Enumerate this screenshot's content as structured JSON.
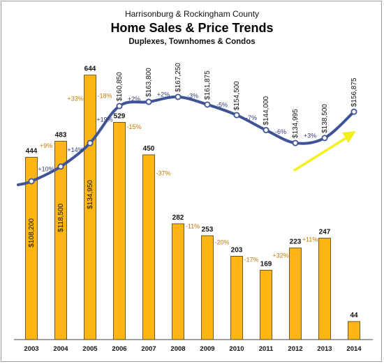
{
  "chart_data": {
    "type": "bar",
    "title": "Home Sales & Price Trends",
    "supertitle": "Harrisonburg & Rockingham County",
    "subtitle": "Duplexes, Townhomes & Condos",
    "categories": [
      "2003",
      "2004",
      "2005",
      "2006",
      "2007",
      "2008",
      "2009",
      "2010",
      "2011",
      "2012",
      "2013",
      "2014"
    ],
    "series": [
      {
        "type": "bar",
        "values": [
          444,
          483,
          644,
          529,
          450,
          282,
          253,
          203,
          169,
          223,
          247,
          44
        ],
        "value_labels": [
          "444",
          "483",
          "644",
          "529",
          "450",
          "282",
          "253",
          "203",
          "169",
          "223",
          "247",
          "44"
        ],
        "change_labels": [
          "",
          "+9%",
          "+33%",
          "-18%",
          "-15%",
          "-37%",
          "-11%",
          "-20%",
          "-17%",
          "+32%",
          "+11%",
          ""
        ],
        "color": "#FDB515"
      },
      {
        "type": "line",
        "values": [
          108200,
          118500,
          134950,
          160850,
          163800,
          167250,
          161875,
          154500,
          144000,
          134995,
          138500,
          156875
        ],
        "value_labels": [
          "$108,200",
          "$118,500",
          "$134,950",
          "$160,850",
          "$163,800",
          "$167,250",
          "$161,875",
          "$154,500",
          "$144,000",
          "$134,995",
          "$138,500",
          "$156,875"
        ],
        "change_labels": [
          "",
          "+10%",
          "+14%",
          "+19%",
          "+2%",
          "+2%",
          "-3%",
          "-5%",
          "-7%",
          "-6%",
          "+3%",
          ""
        ],
        "color": "#3F5496"
      }
    ],
    "annotation": "trend-arrow",
    "arrow_color": "#F5EF1E",
    "grid": false,
    "legend": "none"
  }
}
